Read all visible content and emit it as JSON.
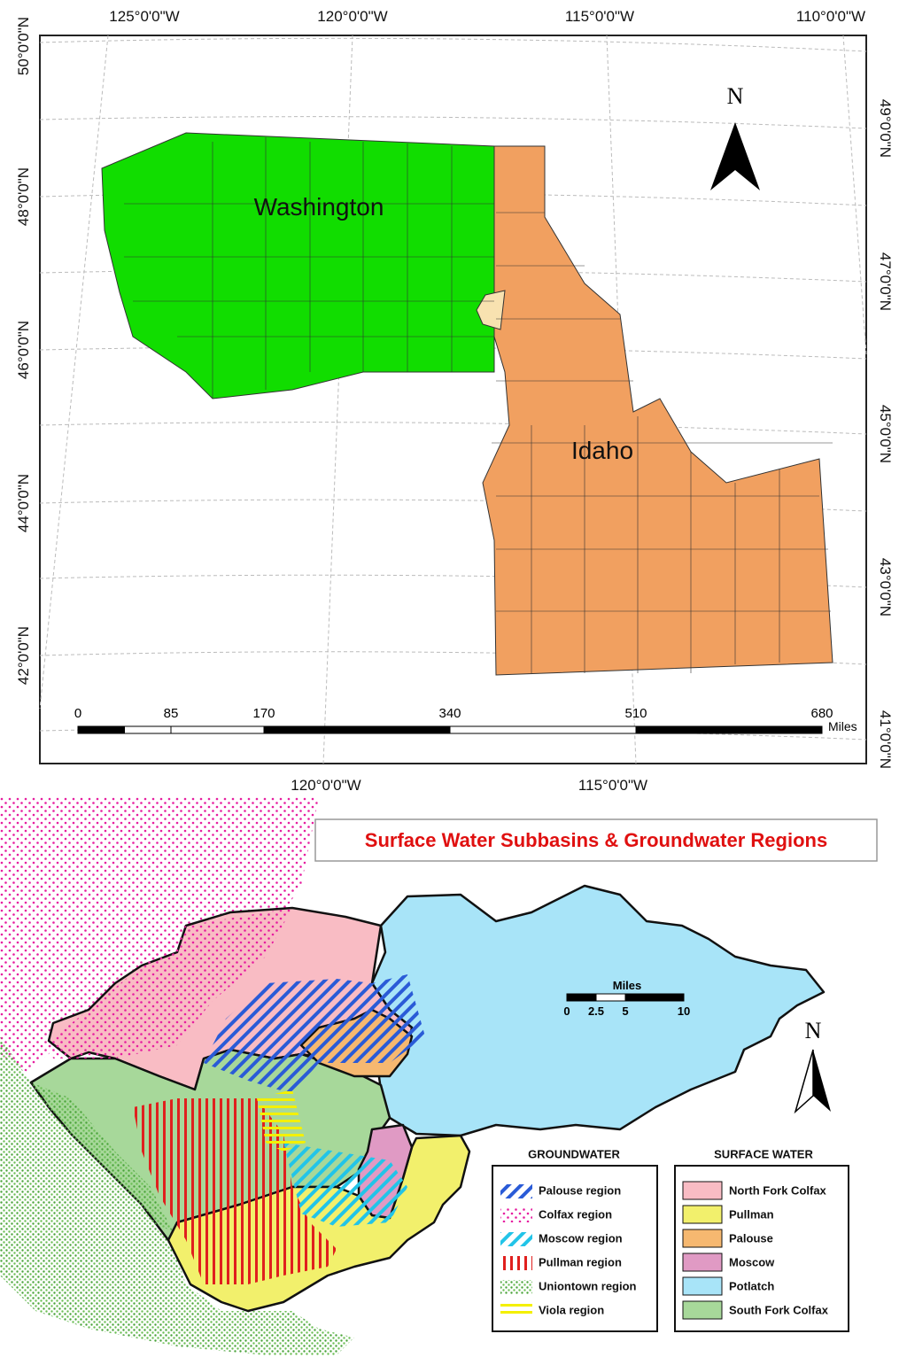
{
  "top_map": {
    "lon_top": [
      "125°0'0\"W",
      "120°0'0\"W",
      "115°0'0\"W",
      "110°0'0\"W"
    ],
    "lon_bottom": [
      "120°0'0\"W",
      "115°0'0\"W"
    ],
    "lat_left": [
      "50°0'0\"N",
      "48°0'0\"N",
      "46°0'0\"N",
      "44°0'0\"N",
      "42°0'0\"N"
    ],
    "lat_right": [
      "49°0'0\"N",
      "47°0'0\"N",
      "45°0'0\"N",
      "43°0'0\"N",
      "41°0'0\"N"
    ],
    "states": [
      "Washington",
      "Idaho"
    ],
    "north": "N",
    "scale": {
      "ticks": [
        0,
        85,
        170,
        340,
        510,
        680
      ],
      "unit": "Miles"
    }
  },
  "bottom_map": {
    "title": "Surface Water Subbasins & Groundwater Regions",
    "north": "N",
    "scale": {
      "unit": "Miles",
      "ticks": [
        0,
        2.5,
        5,
        10
      ]
    },
    "groundwater": {
      "title": "GROUNDWATER",
      "items": [
        "Palouse region",
        "Colfax region",
        "Moscow region",
        "Pullman region",
        "Uniontown region",
        "Viola region"
      ]
    },
    "surface_water": {
      "title": "SURFACE WATER",
      "items": [
        "North Fork Colfax",
        "Pullman",
        "Palouse",
        "Moscow",
        "Potlatch",
        "South Fork Colfax"
      ]
    }
  }
}
